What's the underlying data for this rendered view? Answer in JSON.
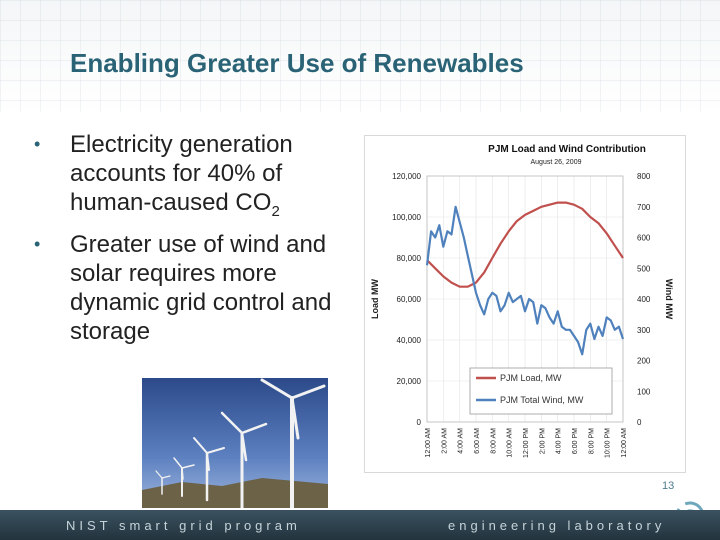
{
  "slide": {
    "title": "Enabling Greater Use of Renewables",
    "bullets": [
      {
        "text": "Electricity generation accounts for 40% of human-caused CO",
        "sub": "2"
      },
      {
        "text": "Greater use of wind and solar requires more dynamic grid control and storage",
        "sub": ""
      }
    ],
    "page_number": "13",
    "footer_left": "NIST smart grid program",
    "footer_right": "engineering laboratory"
  },
  "colors": {
    "title": "#2a6276",
    "load": "#c0504d",
    "wind": "#4f81bd"
  },
  "chart_data": {
    "type": "line",
    "title": "PJM Load  and Wind Contribution",
    "subtitle": "August 26, 2009",
    "ylabel": "Load MW",
    "y2label": "Wind MW",
    "ylim": [
      0,
      120000
    ],
    "y2lim": [
      0,
      800
    ],
    "yticks": [
      "120,000",
      "100,000",
      "80,000",
      "60,000",
      "40,000",
      "20,000",
      "0"
    ],
    "y2ticks": [
      "800",
      "700",
      "600",
      "500",
      "400",
      "300",
      "200",
      "100",
      "0"
    ],
    "xticks": [
      "12:00 AM",
      "2:00 AM",
      "4:00 AM",
      "6:00 AM",
      "8:00 AM",
      "10:00 AM",
      "12:00 PM",
      "2:00 PM",
      "4:00 PM",
      "6:00 PM",
      "8:00 PM",
      "10:00 PM",
      "12:00 AM"
    ],
    "legend_position": "bottom-right",
    "series": [
      {
        "name": "PJM Load, MW",
        "axis": "left",
        "x": [
          0,
          1,
          2,
          3,
          4,
          5,
          6,
          7,
          8,
          9,
          10,
          11,
          12,
          13,
          14,
          15,
          16,
          17,
          18,
          19,
          20,
          21,
          22,
          23,
          24
        ],
        "y": [
          79000,
          75000,
          71000,
          68000,
          66000,
          66000,
          68000,
          73000,
          80000,
          87000,
          93000,
          98000,
          101000,
          103000,
          105000,
          106000,
          107000,
          107000,
          106000,
          104000,
          100000,
          97000,
          92000,
          86000,
          80000
        ]
      },
      {
        "name": "PJM Total Wind, MW",
        "axis": "right",
        "x": [
          0,
          0.5,
          1,
          1.5,
          2,
          2.5,
          3,
          3.5,
          4,
          4.5,
          5,
          5.5,
          6,
          6.5,
          7,
          7.5,
          8,
          8.5,
          9,
          9.5,
          10,
          10.5,
          11,
          11.5,
          12,
          12.5,
          13,
          13.5,
          14,
          14.5,
          15,
          15.5,
          16,
          16.5,
          17,
          17.5,
          18,
          18.5,
          19,
          19.5,
          20,
          20.5,
          21,
          21.5,
          22,
          22.5,
          23,
          23.5,
          24
        ],
        "y": [
          510,
          620,
          600,
          640,
          570,
          620,
          610,
          700,
          650,
          600,
          540,
          480,
          420,
          380,
          350,
          400,
          420,
          410,
          360,
          380,
          420,
          390,
          400,
          410,
          360,
          400,
          390,
          320,
          380,
          370,
          340,
          320,
          360,
          310,
          300,
          300,
          280,
          260,
          220,
          300,
          320,
          270,
          310,
          280,
          340,
          330,
          300,
          310,
          270
        ]
      }
    ]
  }
}
